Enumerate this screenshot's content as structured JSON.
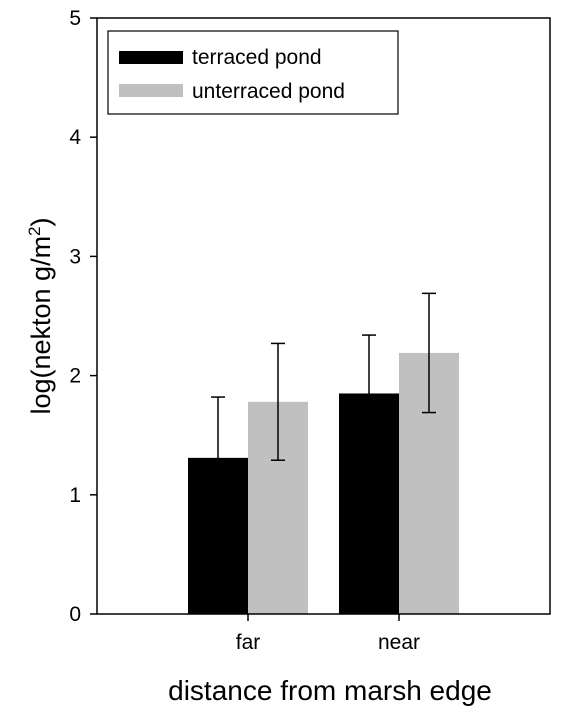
{
  "chart_data": {
    "type": "bar",
    "xlabel": "distance from marsh edge",
    "ylabel_main": "log(nekton g/m",
    "ylabel_sup": "2",
    "ylabel_close": ")",
    "categories": [
      "far",
      "near"
    ],
    "ylim": [
      0,
      5
    ],
    "yticks": [
      0,
      1,
      2,
      3,
      4,
      5
    ],
    "grid": false,
    "legend": "top-left",
    "series": [
      {
        "name": "terraced pond",
        "color": "#000000",
        "values": [
          1.31,
          1.85
        ],
        "errors": [
          0.51,
          0.49
        ]
      },
      {
        "name": "unterraced pond",
        "color": "#c0c0c0",
        "values": [
          1.78,
          2.19
        ],
        "errors": [
          0.49,
          0.5
        ]
      }
    ]
  }
}
